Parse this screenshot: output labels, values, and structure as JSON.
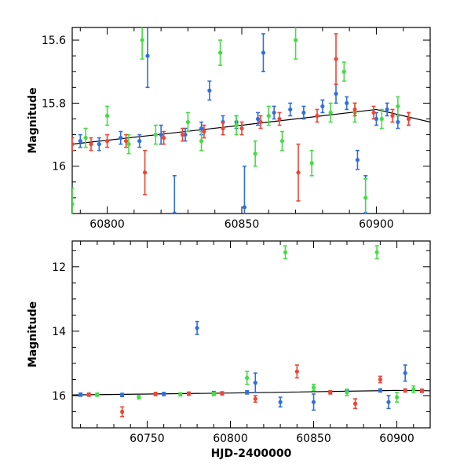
{
  "chart_data": [
    {
      "type": "scatter",
      "title": "",
      "xlabel": "",
      "ylabel": "Magnitude",
      "xlim": [
        60787,
        60920
      ],
      "ylim": [
        16.15,
        15.56
      ],
      "y_inverted": true,
      "x_ticks": [
        60800,
        60850,
        60900
      ],
      "y_ticks": [
        15.6,
        15.8,
        16
      ],
      "x_tick_labels": [
        "60800",
        "60850",
        "60900"
      ],
      "y_tick_labels": [
        "15.6",
        "15.8",
        "16"
      ],
      "grid": false,
      "legend": "none",
      "trend_line": {
        "color": "#000000",
        "x": [
          60787,
          60850,
          60900,
          60920
        ],
        "y": [
          15.93,
          15.87,
          15.82,
          15.86
        ]
      },
      "series": [
        {
          "color": "#2f6fe0",
          "x": [
            60790,
            60797,
            60805,
            60812,
            60815,
            60820,
            60825,
            60829,
            60835,
            60838,
            60843,
            60848,
            60851,
            60856,
            60858,
            60862,
            60868,
            60873,
            60880,
            60885,
            60889,
            60893,
            60896,
            60900,
            60904,
            60908,
            60912
          ],
          "y": [
            15.92,
            15.93,
            15.91,
            15.92,
            15.65,
            15.9,
            16.15,
            15.9,
            15.88,
            15.76,
            15.86,
            15.86,
            16.13,
            15.85,
            15.64,
            15.83,
            15.82,
            15.83,
            15.81,
            15.77,
            15.8,
            15.98,
            16.15,
            15.85,
            15.82,
            15.86,
            15.85
          ],
          "err": [
            0.02,
            0.02,
            0.02,
            0.02,
            0.1,
            0.03,
            0.12,
            0.02,
            0.02,
            0.03,
            0.02,
            0.02,
            0.13,
            0.02,
            0.06,
            0.02,
            0.02,
            0.02,
            0.02,
            0.03,
            0.02,
            0.03,
            0.12,
            0.02,
            0.02,
            0.02,
            0.02
          ]
        },
        {
          "color": "#44dd44",
          "x": [
            60787,
            60792,
            60800,
            60808,
            60813,
            60818,
            60830,
            60835,
            60842,
            60848,
            60855,
            60860,
            60865,
            60870,
            60876,
            60883,
            60888,
            60892,
            60896,
            60902,
            60908
          ],
          "y": [
            16.12,
            15.91,
            15.84,
            15.93,
            15.6,
            15.9,
            15.86,
            15.92,
            15.64,
            15.87,
            15.96,
            15.84,
            15.92,
            15.6,
            15.99,
            15.83,
            15.7,
            15.83,
            16.1,
            15.85,
            15.81
          ],
          "err": [
            0.05,
            0.03,
            0.03,
            0.03,
            0.06,
            0.03,
            0.03,
            0.03,
            0.04,
            0.03,
            0.04,
            0.03,
            0.03,
            0.06,
            0.04,
            0.03,
            0.03,
            0.03,
            0.06,
            0.03,
            0.03
          ]
        },
        {
          "color": "#f04434",
          "x": [
            60787,
            60794,
            60800,
            60807,
            60814,
            60821,
            60828,
            60836,
            60843,
            60850,
            60857,
            60864,
            60871,
            60878,
            60885,
            60892,
            60899,
            60906,
            60912
          ],
          "y": [
            15.93,
            15.93,
            15.92,
            15.92,
            16.02,
            15.91,
            15.9,
            15.89,
            15.88,
            15.88,
            15.86,
            15.85,
            16.02,
            15.84,
            15.66,
            15.82,
            15.83,
            15.84,
            15.85
          ],
          "err": [
            0.02,
            0.02,
            0.02,
            0.02,
            0.07,
            0.02,
            0.02,
            0.02,
            0.02,
            0.02,
            0.02,
            0.02,
            0.09,
            0.02,
            0.08,
            0.02,
            0.02,
            0.02,
            0.02
          ]
        }
      ]
    },
    {
      "type": "scatter",
      "title": "",
      "xlabel": "HJD-2400000",
      "ylabel": "Magnitude",
      "xlim": [
        60705,
        60920
      ],
      "ylim": [
        17,
        11.2
      ],
      "y_inverted": true,
      "x_ticks": [
        60750,
        60800,
        60850,
        60900
      ],
      "y_ticks": [
        12,
        14,
        16
      ],
      "x_tick_labels": [
        "60750",
        "60800",
        "60850",
        "60900"
      ],
      "y_tick_labels": [
        "12",
        "14",
        "16"
      ],
      "grid": false,
      "legend": "none",
      "trend_line": {
        "color": "#000000",
        "x": [
          60705,
          60800,
          60900,
          60920
        ],
        "y": [
          15.98,
          15.92,
          15.84,
          15.85
        ]
      },
      "series": [
        {
          "color": "#2f6fe0",
          "x": [
            60710,
            60735,
            60760,
            60780,
            60790,
            60810,
            60815,
            60830,
            60850,
            60870,
            60890,
            60895,
            60905,
            60915
          ],
          "y": [
            15.97,
            15.98,
            15.95,
            13.9,
            15.92,
            15.9,
            15.6,
            16.2,
            16.2,
            15.85,
            15.84,
            16.2,
            15.3,
            15.85
          ],
          "err": [
            0.05,
            0.05,
            0.05,
            0.2,
            0.05,
            0.05,
            0.3,
            0.15,
            0.25,
            0.05,
            0.05,
            0.2,
            0.25,
            0.05
          ]
        },
        {
          "color": "#44dd44",
          "x": [
            60720,
            60745,
            60770,
            60790,
            60810,
            60833,
            60850,
            60870,
            60888,
            60900,
            60910
          ],
          "y": [
            15.97,
            16.05,
            15.96,
            15.95,
            15.45,
            11.55,
            15.75,
            15.9,
            11.55,
            16.05,
            15.8
          ],
          "err": [
            0.05,
            0.05,
            0.05,
            0.05,
            0.2,
            0.2,
            0.1,
            0.1,
            0.2,
            0.15,
            0.1
          ]
        },
        {
          "color": "#f04434",
          "x": [
            60715,
            60735,
            60755,
            60775,
            60795,
            60815,
            60840,
            60860,
            60875,
            60890,
            60905,
            60915
          ],
          "y": [
            15.97,
            16.5,
            15.95,
            15.94,
            15.93,
            16.1,
            15.25,
            15.9,
            16.25,
            15.5,
            15.84,
            15.85
          ],
          "err": [
            0.05,
            0.15,
            0.05,
            0.05,
            0.05,
            0.1,
            0.2,
            0.05,
            0.15,
            0.1,
            0.05,
            0.05
          ]
        }
      ]
    }
  ]
}
